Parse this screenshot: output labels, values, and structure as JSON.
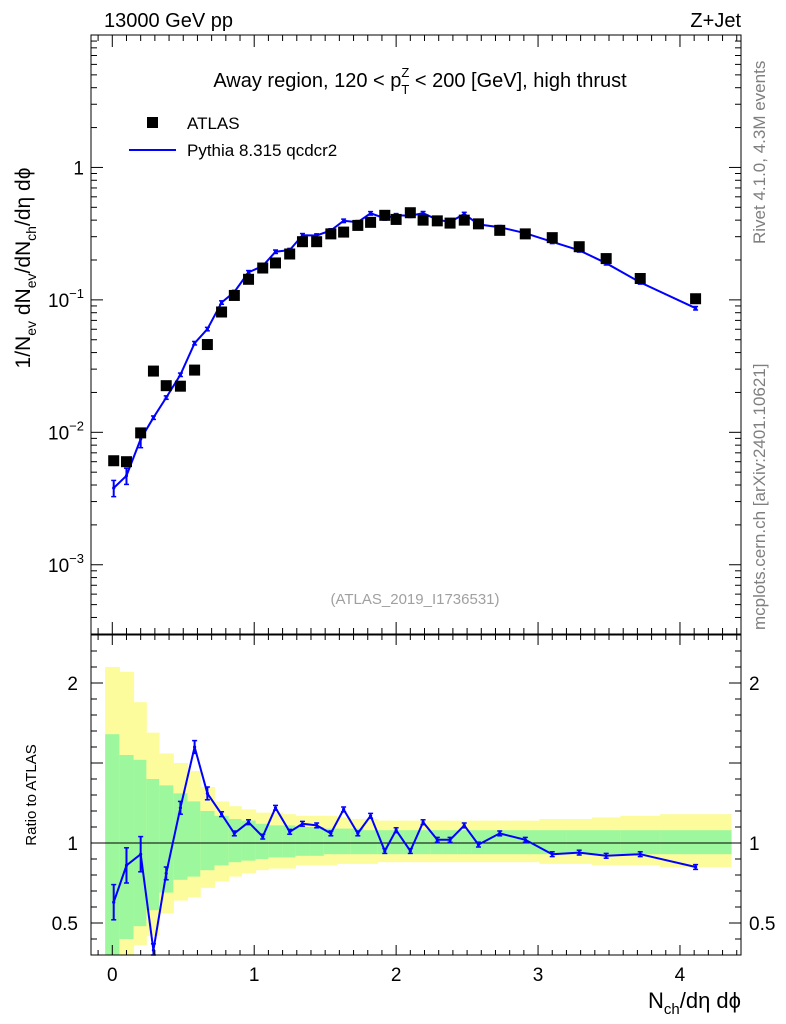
{
  "header": {
    "left": "13000 GeV pp",
    "right": "Z+Jet"
  },
  "side_labels": {
    "top": "Rivet 4.1.0,  4.3M events",
    "bottom": "mcplots.cern.ch [arXiv:2401.10621]"
  },
  "analysis_label": "(ATLAS_2019_I1736531)",
  "colors": {
    "data": "#000000",
    "mc": "#0000ff",
    "band_inner": "#9df79d",
    "band_outer": "#fcfc9d"
  },
  "chart_data": {
    "type": "scatter",
    "title": {
      "text": "Away region, 120 < p",
      "sup": "Z",
      "sub": "T",
      "tail": " < 200 [GeV], high thrust"
    },
    "xlabel": {
      "base": "N",
      "sub": "ch",
      "tail": "/dη dϕ"
    },
    "ylabel": {
      "a": "1/N",
      "a_sub": "ev",
      "b": " dN",
      "b_sub": "ev",
      "c": "/dN",
      "c_sub": "ch",
      "d": "/dη dϕ"
    },
    "ratio_ylabel": "Ratio to ATLAS",
    "xlim": [
      -0.15,
      4.43
    ],
    "ylim": [
      0.0003,
      10
    ],
    "ratio_ylim": [
      0.3,
      2.3
    ],
    "x_ticks": [
      0,
      1,
      2,
      3,
      4
    ],
    "x_tick_labels": [
      "0",
      "1",
      "2",
      "3",
      "4"
    ],
    "y_ticks": [
      {
        "value": 1,
        "base": "1",
        "exp": ""
      },
      {
        "value": 0.1,
        "base": "10",
        "exp": "−1"
      },
      {
        "value": 0.01,
        "base": "10",
        "exp": "−2"
      },
      {
        "value": 0.001,
        "base": "10",
        "exp": "−3"
      }
    ],
    "ratio_y_ticks": [
      {
        "value": 2,
        "label": "2"
      },
      {
        "value": 1,
        "label": "1"
      },
      {
        "value": 0.5,
        "label": "0.5"
      }
    ],
    "legend": {
      "data_label": "ATLAS",
      "mc_label": "Pythia 8.315 qcdcr2",
      "position": "top-left"
    },
    "series": [
      {
        "name": "ATLAS",
        "x": [
          0.01,
          0.1,
          0.2,
          0.29,
          0.38,
          0.48,
          0.58,
          0.67,
          0.77,
          0.86,
          0.96,
          1.06,
          1.15,
          1.25,
          1.34,
          1.44,
          1.54,
          1.63,
          1.73,
          1.82,
          1.92,
          2.0,
          2.1,
          2.19,
          2.29,
          2.38,
          2.48,
          2.58,
          2.73,
          2.91,
          3.1,
          3.29,
          3.48,
          3.72,
          4.11
        ],
        "y": [
          0.0061,
          0.006,
          0.0099,
          0.029,
          0.0225,
          0.0223,
          0.0295,
          0.046,
          0.081,
          0.108,
          0.143,
          0.174,
          0.19,
          0.222,
          0.275,
          0.275,
          0.315,
          0.325,
          0.365,
          0.385,
          0.435,
          0.405,
          0.455,
          0.4,
          0.395,
          0.38,
          0.4,
          0.375,
          0.335,
          0.315,
          0.295,
          0.252,
          0.205,
          0.145,
          0.102
        ]
      },
      {
        "name": "Pythia 8.315 qcdcr2",
        "x": [
          0.01,
          0.1,
          0.2,
          0.29,
          0.38,
          0.48,
          0.58,
          0.67,
          0.77,
          0.86,
          0.96,
          1.06,
          1.15,
          1.25,
          1.34,
          1.44,
          1.54,
          1.63,
          1.73,
          1.82,
          1.92,
          2.0,
          2.1,
          2.19,
          2.29,
          2.38,
          2.48,
          2.58,
          2.73,
          2.91,
          3.1,
          3.29,
          3.48,
          3.72,
          4.11
        ],
        "y": [
          0.0038,
          0.0047,
          0.0089,
          0.0129,
          0.0183,
          0.0272,
          0.0471,
          0.0602,
          0.0955,
          0.1146,
          0.1616,
          0.1798,
          0.231,
          0.2375,
          0.3076,
          0.3061,
          0.3342,
          0.3953,
          0.3856,
          0.4504,
          0.4127,
          0.4352,
          0.4322,
          0.4512,
          0.4028,
          0.3875,
          0.4448,
          0.3713,
          0.3535,
          0.3189,
          0.2743,
          0.2368,
          0.1891,
          0.1356,
          0.0865
        ],
        "ratio": [
          0.63,
          0.86,
          0.93,
          0.33,
          0.81,
          1.22,
          1.6,
          1.31,
          1.18,
          1.06,
          1.13,
          1.04,
          1.22,
          1.07,
          1.12,
          1.11,
          1.06,
          1.21,
          1.06,
          1.17,
          0.95,
          1.08,
          0.95,
          1.13,
          1.02,
          1.02,
          1.11,
          0.99,
          1.06,
          1.02,
          0.93,
          0.94,
          0.92,
          0.93,
          0.85
        ]
      }
    ],
    "ratio_bands": {
      "edges": [
        -0.05,
        0.05,
        0.15,
        0.24,
        0.33,
        0.43,
        0.53,
        0.62,
        0.72,
        0.82,
        0.91,
        1.01,
        1.1,
        1.2,
        1.29,
        1.39,
        1.49,
        1.58,
        1.68,
        1.77,
        1.87,
        1.96,
        2.05,
        2.14,
        2.24,
        2.33,
        2.43,
        2.53,
        2.63,
        2.82,
        3.01,
        3.2,
        3.38,
        3.58,
        3.86,
        4.36
      ],
      "inner": [
        [
          0.3,
          1.68
        ],
        [
          0.4,
          1.55
        ],
        [
          0.48,
          1.52
        ],
        [
          0.58,
          1.4
        ],
        [
          0.69,
          1.36
        ],
        [
          0.77,
          1.31
        ],
        [
          0.79,
          1.26
        ],
        [
          0.83,
          1.2
        ],
        [
          0.86,
          1.17
        ],
        [
          0.88,
          1.15
        ],
        [
          0.89,
          1.14
        ],
        [
          0.9,
          1.12
        ],
        [
          0.91,
          1.11
        ],
        [
          0.91,
          1.11
        ],
        [
          0.92,
          1.1
        ],
        [
          0.92,
          1.1
        ],
        [
          0.93,
          1.09
        ],
        [
          0.93,
          1.09
        ],
        [
          0.93,
          1.09
        ],
        [
          0.93,
          1.08
        ],
        [
          0.93,
          1.08
        ],
        [
          0.93,
          1.08
        ],
        [
          0.93,
          1.08
        ],
        [
          0.93,
          1.08
        ],
        [
          0.93,
          1.08
        ],
        [
          0.93,
          1.08
        ],
        [
          0.93,
          1.08
        ],
        [
          0.93,
          1.08
        ],
        [
          0.93,
          1.08
        ],
        [
          0.93,
          1.08
        ],
        [
          0.93,
          1.08
        ],
        [
          0.93,
          1.08
        ],
        [
          0.93,
          1.08
        ],
        [
          0.93,
          1.08
        ],
        [
          0.93,
          1.08
        ]
      ],
      "outer": [
        [
          0.3,
          2.1
        ],
        [
          0.3,
          2.07
        ],
        [
          0.36,
          1.88
        ],
        [
          0.42,
          1.69
        ],
        [
          0.56,
          1.56
        ],
        [
          0.64,
          1.5
        ],
        [
          0.66,
          1.45
        ],
        [
          0.72,
          1.35
        ],
        [
          0.76,
          1.26
        ],
        [
          0.79,
          1.23
        ],
        [
          0.81,
          1.21
        ],
        [
          0.83,
          1.19
        ],
        [
          0.84,
          1.19
        ],
        [
          0.84,
          1.18
        ],
        [
          0.86,
          1.17
        ],
        [
          0.86,
          1.17
        ],
        [
          0.86,
          1.17
        ],
        [
          0.87,
          1.16
        ],
        [
          0.87,
          1.15
        ],
        [
          0.87,
          1.15
        ],
        [
          0.88,
          1.14
        ],
        [
          0.88,
          1.14
        ],
        [
          0.88,
          1.14
        ],
        [
          0.88,
          1.14
        ],
        [
          0.88,
          1.14
        ],
        [
          0.88,
          1.14
        ],
        [
          0.88,
          1.14
        ],
        [
          0.88,
          1.14
        ],
        [
          0.88,
          1.14
        ],
        [
          0.88,
          1.14
        ],
        [
          0.87,
          1.15
        ],
        [
          0.87,
          1.15
        ],
        [
          0.86,
          1.16
        ],
        [
          0.86,
          1.17
        ],
        [
          0.85,
          1.18
        ]
      ]
    }
  }
}
